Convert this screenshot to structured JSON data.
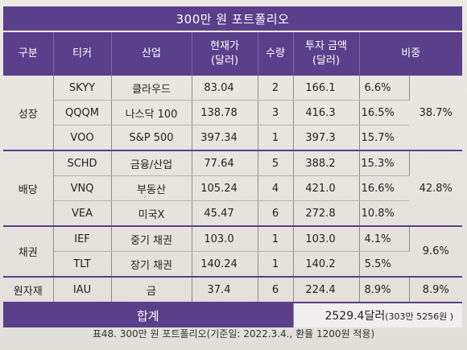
{
  "title": "300만 원 포트폴리오",
  "headers": {
    "category": "구분",
    "ticker": "티커",
    "industry": "산업",
    "price": "현재가",
    "price_unit": "(달러)",
    "qty": "수량",
    "invest": "투자 금액",
    "invest_unit": "(달러)",
    "weight": "비중"
  },
  "groups": [
    {
      "label": "성장",
      "weight": "38.7%",
      "rows": [
        {
          "ticker": "SKYY",
          "industry": "클라우드",
          "price": "83.04",
          "qty": "2",
          "amount": "166.1",
          "pct": "6.6%"
        },
        {
          "ticker": "QQQM",
          "industry": "나스닥 100",
          "price": "138.78",
          "qty": "3",
          "amount": "416.3",
          "pct": "16.5%"
        },
        {
          "ticker": "VOO",
          "industry": "S&P 500",
          "price": "397.34",
          "qty": "1",
          "amount": "397.3",
          "pct": "15.7%"
        }
      ]
    },
    {
      "label": "배당",
      "weight": "42.8%",
      "rows": [
        {
          "ticker": "SCHD",
          "industry": "금융/산업",
          "price": "77.64",
          "qty": "5",
          "amount": "388.2",
          "pct": "15.3%"
        },
        {
          "ticker": "VNQ",
          "industry": "부동산",
          "price": "105.24",
          "qty": "4",
          "amount": "421.0",
          "pct": "16.6%"
        },
        {
          "ticker": "VEA",
          "industry": "미국X",
          "price": "45.47",
          "qty": "6",
          "amount": "272.8",
          "pct": "10.8%"
        }
      ]
    },
    {
      "label": "채권",
      "weight": "9.6%",
      "rows": [
        {
          "ticker": "IEF",
          "industry": "중기 채권",
          "price": "103.0",
          "qty": "1",
          "amount": "103.0",
          "pct": "4.1%"
        },
        {
          "ticker": "TLT",
          "industry": "장기 채권",
          "price": "140.24",
          "qty": "1",
          "amount": "140.2",
          "pct": "5.5%"
        }
      ]
    },
    {
      "label": "원자재",
      "weight": "8.9%",
      "rows": [
        {
          "ticker": "IAU",
          "industry": "금",
          "price": "37.4",
          "qty": "6",
          "amount": "224.4",
          "pct": "8.9%"
        }
      ]
    }
  ],
  "total": {
    "label": "합계",
    "value": "2529.4달러",
    "value_note": "(303만 5256원 )"
  },
  "caption": "표48. 300만 원 포트폴리오(기준일: 2022.3.4., 환율 1200원 적용)"
}
